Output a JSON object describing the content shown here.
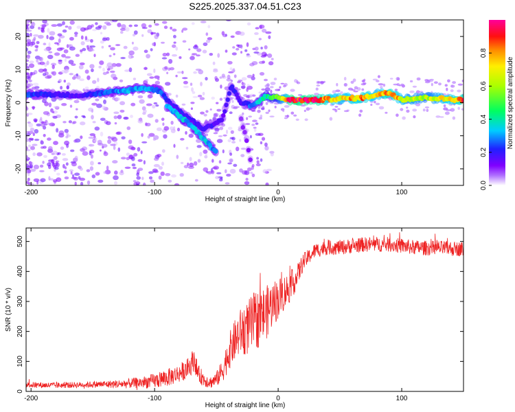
{
  "title": "S225.2025.337.04.51.C23",
  "chart_data": [
    {
      "type": "heatmap",
      "xlabel": "Height of straight line (km)",
      "ylabel": "Frequency (Hz)",
      "xlim": [
        -204,
        150
      ],
      "ylim": [
        -25,
        25
      ],
      "xticks": [
        -200,
        -100,
        0,
        100
      ],
      "yticks": [
        -20,
        -10,
        0,
        10,
        20
      ],
      "colorbar": {
        "label": "Normalized spectral amplitude",
        "range": [
          0,
          1
        ],
        "ticks": [
          0.0,
          0.2,
          0.4,
          0.6,
          0.8
        ],
        "colormap": [
          "#ffffff",
          "#8000ff",
          "#0000ff",
          "#00ffff",
          "#00ff00",
          "#ffff00",
          "#ff8000",
          "#ff0000",
          "#ff00a0"
        ]
      },
      "ridge": [
        {
          "x": -204,
          "y": 2.5,
          "amp": 0.25
        },
        {
          "x": -185,
          "y": 2.5,
          "amp": 0.2
        },
        {
          "x": -160,
          "y": 2.2,
          "amp": 0.15
        },
        {
          "x": -140,
          "y": 3,
          "amp": 0.25
        },
        {
          "x": -125,
          "y": 3.5,
          "amp": 0.3
        },
        {
          "x": -110,
          "y": 4.5,
          "amp": 0.3
        },
        {
          "x": -95,
          "y": 3.5,
          "amp": 0.25
        },
        {
          "x": -88,
          "y": 0,
          "amp": 0.2
        },
        {
          "x": -75,
          "y": -4,
          "amp": 0.2
        },
        {
          "x": -60,
          "y": -8,
          "amp": 0.2
        },
        {
          "x": -45,
          "y": -5,
          "amp": 0.15
        },
        {
          "x": -38,
          "y": 5,
          "amp": 0.2
        },
        {
          "x": -30,
          "y": 0,
          "amp": 0.15
        },
        {
          "x": -20,
          "y": -1,
          "amp": 0.3
        },
        {
          "x": -10,
          "y": 2,
          "amp": 0.4
        },
        {
          "x": 0,
          "y": 1.5,
          "amp": 0.5
        },
        {
          "x": 10,
          "y": 0.8,
          "amp": 0.95
        },
        {
          "x": 30,
          "y": 0.8,
          "amp": 0.9
        },
        {
          "x": 50,
          "y": 1.2,
          "amp": 0.7
        },
        {
          "x": 70,
          "y": 1.5,
          "amp": 0.8
        },
        {
          "x": 80,
          "y": 2.5,
          "amp": 0.7
        },
        {
          "x": 90,
          "y": 3,
          "amp": 0.85
        },
        {
          "x": 100,
          "y": 1,
          "amp": 0.7
        },
        {
          "x": 120,
          "y": 1.5,
          "amp": 0.6
        },
        {
          "x": 150,
          "y": 0.8,
          "amp": 0.85
        }
      ],
      "branch": [
        {
          "x": -90,
          "y": -1,
          "amp": 0.3
        },
        {
          "x": -80,
          "y": -4,
          "amp": 0.35
        },
        {
          "x": -70,
          "y": -7,
          "amp": 0.3
        },
        {
          "x": -60,
          "y": -11,
          "amp": 0.35
        },
        {
          "x": -50,
          "y": -15,
          "amp": 0.25
        }
      ],
      "branch2": [
        {
          "x": -30,
          "y": -5,
          "amp": 0.1
        },
        {
          "x": -25,
          "y": -12,
          "amp": 0.12
        },
        {
          "x": -22,
          "y": -18,
          "amp": 0.1
        }
      ]
    },
    {
      "type": "line",
      "xlabel": "Height of straight line (km)",
      "ylabel": "SNR (10 * v/v)",
      "xlim": [
        -204,
        150
      ],
      "ylim": [
        0,
        545
      ],
      "xticks": [
        -200,
        -100,
        0,
        100
      ],
      "yticks": [
        0,
        100,
        200,
        300,
        400,
        500
      ],
      "color": "#ee2222",
      "series": [
        {
          "name": "SNR",
          "x": [
            -204,
            -180,
            -160,
            -140,
            -125,
            -110,
            -100,
            -90,
            -80,
            -72,
            -68,
            -65,
            -60,
            -55,
            -50,
            -45,
            -40,
            -35,
            -30,
            -25,
            -20,
            -15,
            -10,
            -5,
            0,
            5,
            10,
            15,
            20,
            25,
            30,
            40,
            50,
            60,
            70,
            80,
            90,
            100,
            110,
            120,
            130,
            140,
            150
          ],
          "values": [
            22,
            20,
            22,
            24,
            25,
            30,
            35,
            45,
            60,
            80,
            110,
            60,
            40,
            30,
            40,
            70,
            130,
            170,
            200,
            210,
            230,
            250,
            260,
            290,
            310,
            330,
            350,
            380,
            430,
            450,
            470,
            480,
            480,
            485,
            490,
            490,
            490,
            485,
            480,
            478,
            478,
            476,
            475
          ],
          "noise": [
            10,
            10,
            10,
            12,
            15,
            20,
            25,
            30,
            30,
            35,
            40,
            30,
            25,
            20,
            25,
            40,
            60,
            70,
            80,
            90,
            100,
            100,
            90,
            80,
            70,
            60,
            50,
            40,
            30,
            25,
            25,
            25,
            25,
            25,
            25,
            25,
            25,
            25,
            25,
            25,
            25,
            25,
            25
          ]
        }
      ]
    }
  ]
}
